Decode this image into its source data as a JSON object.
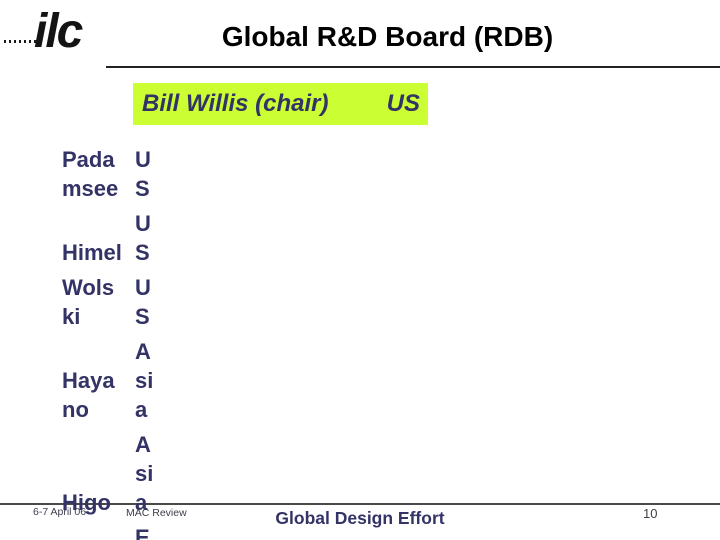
{
  "slide": {
    "logo": {
      "text": "ilc"
    },
    "title": "Global R&D Board (RDB)",
    "chair": {
      "label": "Bill Willis (chair)",
      "region": "US"
    },
    "members": {
      "rows": [
        {
          "name_lines": [
            "Pada",
            "msee"
          ],
          "region_lines": [
            "U",
            "S"
          ]
        },
        {
          "name_lines": [
            "Himel"
          ],
          "region_lines": [
            "U",
            "S"
          ]
        },
        {
          "name_lines": [
            "Wols",
            "ki"
          ],
          "region_lines": [
            "U",
            "S"
          ]
        },
        {
          "name_lines": [
            "Haya",
            "no"
          ],
          "region_lines": [
            "A",
            "si",
            "a"
          ]
        },
        {
          "name_lines": [
            "Higo"
          ],
          "region_lines": [
            "A",
            "si",
            "a"
          ]
        },
        {
          "name_lines": [],
          "region_lines": [
            "E"
          ]
        }
      ]
    },
    "footer": {
      "date": "6-7 April 06",
      "review": "MAC Review",
      "org": "Global Design Effort",
      "page_number": "10"
    },
    "colors": {
      "member_text": "#333366",
      "highlight_bg": "#CCFF33",
      "highlight_text": "#333366",
      "title_text": "#000000"
    }
  }
}
